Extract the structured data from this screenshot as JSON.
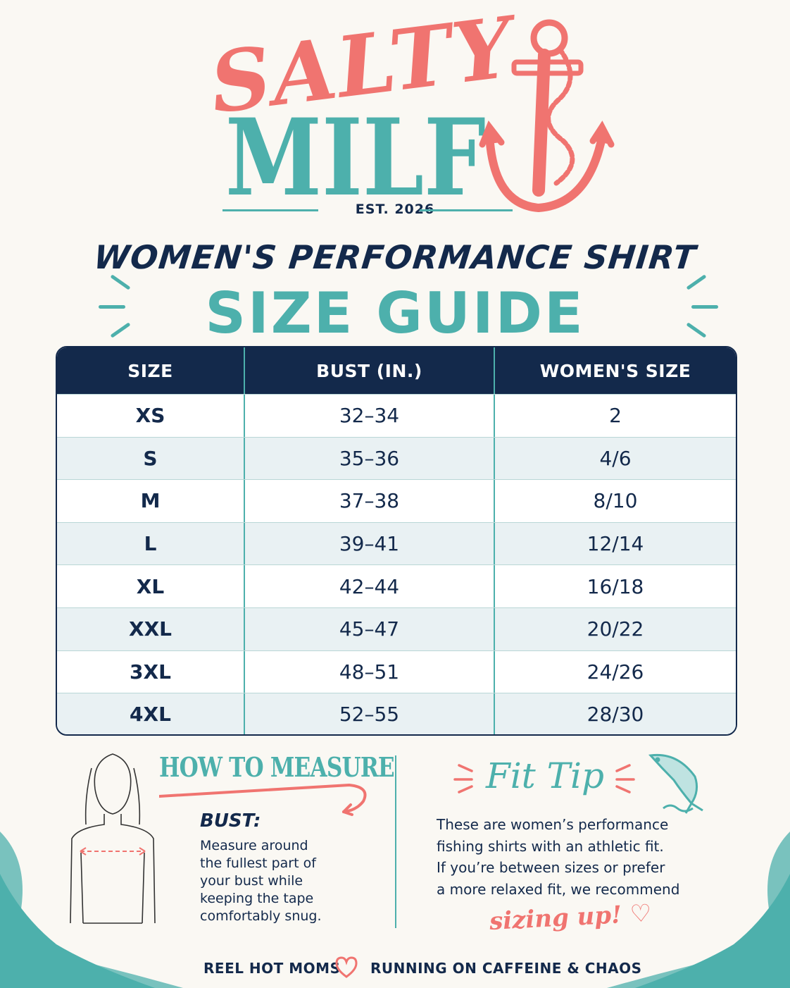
{
  "brand": {
    "line1": "SALTY",
    "line2": "MILF",
    "established": "EST. 2026",
    "colors": {
      "coral": "#f07470",
      "teal": "#4db0ac",
      "navy": "#13294b"
    },
    "logo_icon": "anchor-icon"
  },
  "header": {
    "subtitle": "WOMEN'S PERFORMANCE SHIRT",
    "title": "SIZE GUIDE"
  },
  "size_table": {
    "columns": [
      "SIZE",
      "BUST (IN.)",
      "WOMEN'S SIZE"
    ],
    "rows": [
      {
        "size": "XS",
        "bust": "32–34",
        "womens": "2"
      },
      {
        "size": "S",
        "bust": "35–36",
        "womens": "4/6"
      },
      {
        "size": "M",
        "bust": "37–38",
        "womens": "8/10"
      },
      {
        "size": "L",
        "bust": "39–41",
        "womens": "12/14"
      },
      {
        "size": "XL",
        "bust": "42–44",
        "womens": "16/18"
      },
      {
        "size": "XXL",
        "bust": "45–47",
        "womens": "20/22"
      },
      {
        "size": "3XL",
        "bust": "48–51",
        "womens": "24/26"
      },
      {
        "size": "4XL",
        "bust": "52–55",
        "womens": "28/30"
      }
    ]
  },
  "how_to_measure": {
    "title": "HOW TO MEASURE",
    "label": "BUST:",
    "lines": [
      "Measure around",
      "the fullest part of",
      "your bust while",
      "keeping the tape",
      "comfortably snug."
    ],
    "illustration": "torso-figure-icon"
  },
  "fit_tip": {
    "title": "Fit Tip",
    "lines": [
      "These are women’s performance",
      "fishing shirts with an athletic fit.",
      "If you’re between sizes or prefer",
      "a more relaxed fit, we recommend"
    ],
    "emphasis": "sizing up!",
    "icon": "fish-icon"
  },
  "footer": {
    "left": "REEL HOT MOMS",
    "right": "RUNNING ON CAFFEINE & CHAOS",
    "separator_icon": "heart-icon"
  }
}
